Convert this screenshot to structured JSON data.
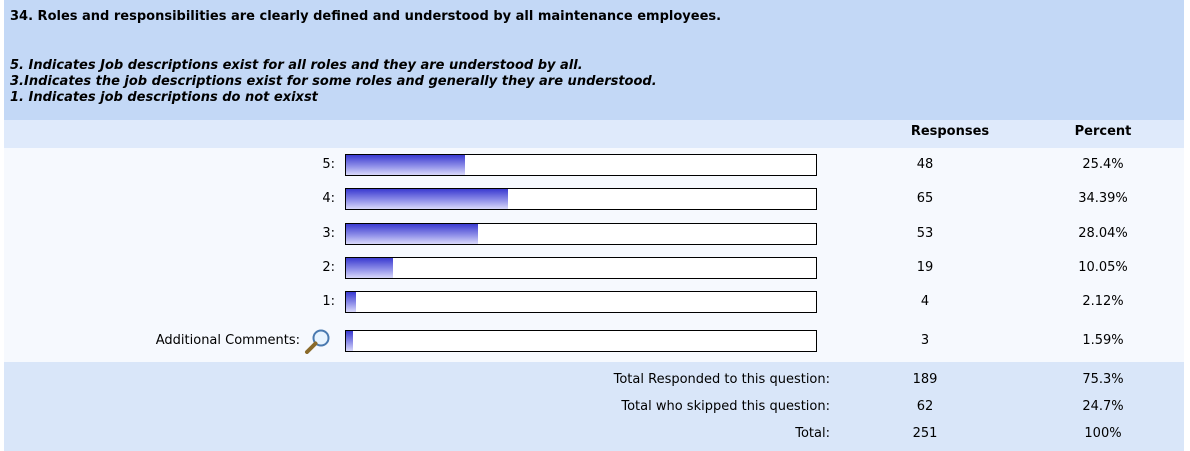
{
  "question": "34. Roles and responsibilities are clearly defined and understood by all maintenance employees.",
  "descriptions": [
    "5. Indicates Job descriptions exist for all roles and they are understood by all.",
    "3.Indicates the job descriptions exist for some roles and generally they are understood.",
    "1. Indicates job descriptions do not exixst"
  ],
  "columns": [
    "Responses",
    "Percent"
  ],
  "rows": [
    {
      "label": "5:",
      "responses": 48,
      "percent": 25.4,
      "percent_label": "25.4%"
    },
    {
      "label": "4:",
      "responses": 65,
      "percent": 34.39,
      "percent_label": "34.39%"
    },
    {
      "label": "3:",
      "responses": 53,
      "percent": 28.04,
      "percent_label": "28.04%"
    },
    {
      "label": "2:",
      "responses": 19,
      "percent": 10.05,
      "percent_label": "10.05%"
    },
    {
      "label": "1:",
      "responses": 4,
      "percent": 2.12,
      "percent_label": "2.12%"
    },
    {
      "label": "Additional Comments:",
      "responses": 3,
      "percent": 1.59,
      "percent_label": "1.59%"
    }
  ],
  "totals": [
    {
      "label": "Total Responded to this question:",
      "responses": 189,
      "percent": "75.3%"
    },
    {
      "label": "Total who skipped this question:",
      "responses": 62,
      "percent": "24.7%"
    },
    {
      "label": "Total:",
      "responses": 251,
      "percent": "100%"
    }
  ]
}
